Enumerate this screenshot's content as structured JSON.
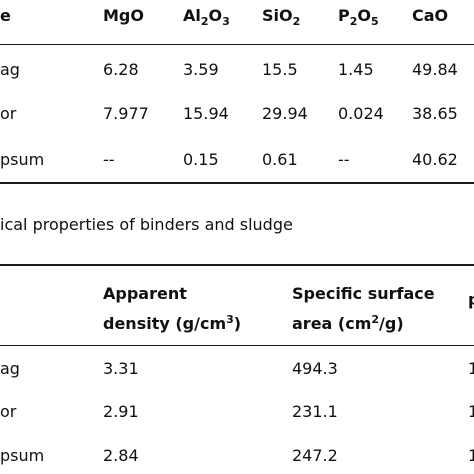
{
  "table1": {
    "headers": {
      "label": "e",
      "mgo": "MgO",
      "al2o3": {
        "a": "Al",
        "b": "2",
        "c": "O",
        "d": "3"
      },
      "sio2": {
        "a": "SiO",
        "b": "2"
      },
      "p2o5": {
        "a": "P",
        "b": "2",
        "c": "O",
        "d": "5"
      },
      "cao": "CaO"
    },
    "rows": [
      {
        "label": "ag",
        "mgo": "6.28",
        "al2o3": "3.59",
        "sio2": "15.5",
        "p2o5": "1.45",
        "cao": "49.84"
      },
      {
        "label": "or",
        "mgo": "7.977",
        "al2o3": "15.94",
        "sio2": "29.94",
        "p2o5": "0.024",
        "cao": "38.65"
      },
      {
        "label": "psum",
        "mgo": "--",
        "al2o3": "0.15",
        "sio2": "0.61",
        "p2o5": "--",
        "cao": "40.62"
      }
    ]
  },
  "caption": "ical properties of binders and sludge",
  "table2": {
    "headers": {
      "density_line1": "Apparent",
      "density_line2_a": "density (g/cm",
      "density_line2_sup": "3",
      "density_line2_b": ")",
      "ssa_line1": "Specific surface",
      "ssa_line2_a": "area (cm",
      "ssa_line2_sup": "2",
      "ssa_line2_b": "/g)",
      "extra": "p"
    },
    "rows": [
      {
        "label": "ag",
        "density": "3.31",
        "ssa": "494.3",
        "extra": "1"
      },
      {
        "label": "or",
        "density": "2.91",
        "ssa": "231.1",
        "extra": "1"
      },
      {
        "label": "psum",
        "density": "2.84",
        "ssa": "247.2",
        "extra": "1"
      }
    ]
  }
}
